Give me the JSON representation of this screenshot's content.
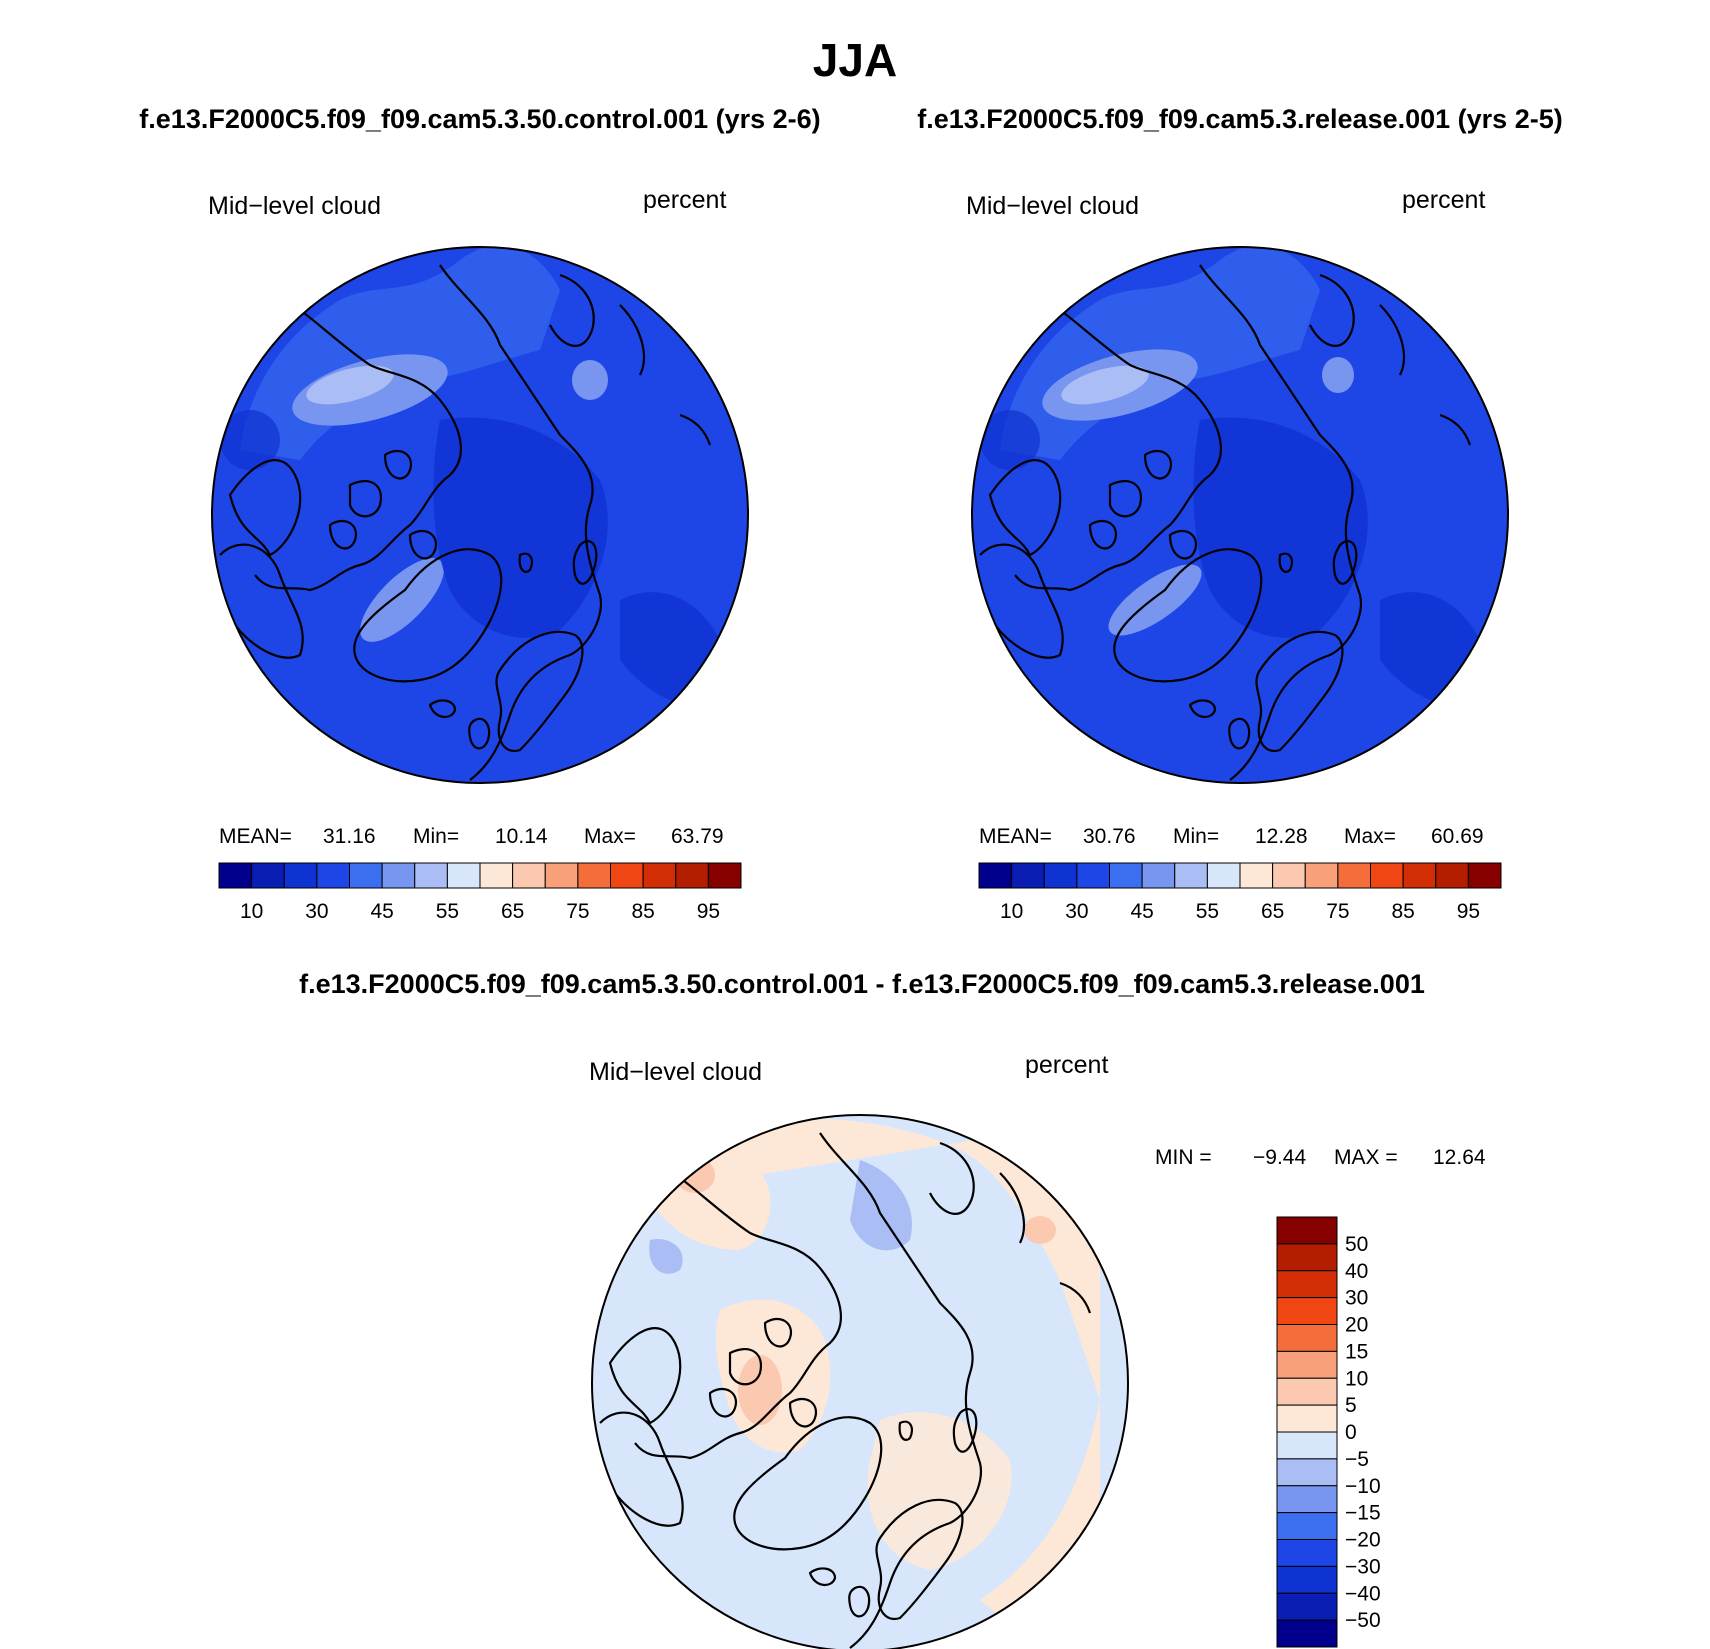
{
  "figure": {
    "title": "JJA",
    "case1": "f.e13.F2000C5.f09_f09.cam5.3.50.control.001 (yrs 2-6)",
    "case2": "f.e13.F2000C5.f09_f09.cam5.3.release.001 (yrs 2-5)",
    "diff_title": "f.e13.F2000C5.f09_f09.cam5.3.50.control.001 - f.e13.F2000C5.f09_f09.cam5.3.release.001"
  },
  "panels": [
    {
      "variable": "Mid−level cloud",
      "units": "percent",
      "mean_label": "MEAN=",
      "mean": "31.16",
      "min_label": "Min=",
      "min": "10.14",
      "max_label": "Max=",
      "max": "63.79"
    },
    {
      "variable": "Mid−level cloud",
      "units": "percent",
      "mean_label": "MEAN=",
      "mean": "30.76",
      "min_label": "Min=",
      "min": "12.28",
      "max_label": "Max=",
      "max": "60.69"
    }
  ],
  "diff_panel": {
    "variable": "Mid−level cloud",
    "units": "percent",
    "min_label": "MIN =",
    "min": "−9.44",
    "max_label": "MAX =",
    "max": "12.64"
  },
  "colorbar_abs": {
    "colors": [
      "#00008c",
      "#0a1eb4",
      "#0f32d2",
      "#1e46e6",
      "#3c6ef0",
      "#7896f0",
      "#aabef5",
      "#d7e6fa",
      "#fde8d8",
      "#fbc8b0",
      "#f7a07a",
      "#f46e3c",
      "#f04614",
      "#d22d05",
      "#b41e00",
      "#870000"
    ],
    "labels": [
      "10",
      "30",
      "45",
      "55",
      "65",
      "75",
      "85",
      "95"
    ]
  },
  "colorbar_diff": {
    "colors": [
      "#870000",
      "#b41e00",
      "#d22d05",
      "#f04614",
      "#f46e3c",
      "#f7a07a",
      "#fbc8b0",
      "#fde8d8",
      "#d7e6fa",
      "#aabef5",
      "#7896f0",
      "#3c6ef0",
      "#1e46e6",
      "#0f32d2",
      "#0a1eb4",
      "#00008c"
    ],
    "labels": [
      "50",
      "40",
      "30",
      "20",
      "15",
      "10",
      "5",
      "0",
      "−5",
      "−10",
      "−15",
      "−20",
      "−30",
      "−40",
      "−50"
    ]
  },
  "chart_data": [
    {
      "type": "heatmap",
      "projection": "north polar stereographic",
      "title": "Mid−level cloud",
      "units": "percent",
      "mean": 31.16,
      "min": 10.14,
      "max": 63.79,
      "contour_levels": [
        10,
        15,
        20,
        25,
        30,
        35,
        40,
        45,
        50,
        55,
        60,
        65,
        70,
        75,
        80,
        85,
        90,
        95
      ],
      "colorbar_ticks": [
        10,
        30,
        45,
        55,
        65,
        75,
        85,
        95
      ]
    },
    {
      "type": "heatmap",
      "projection": "north polar stereographic",
      "title": "Mid−level cloud",
      "units": "percent",
      "mean": 30.76,
      "min": 12.28,
      "max": 60.69,
      "contour_levels": [
        10,
        15,
        20,
        25,
        30,
        35,
        40,
        45,
        50,
        55,
        60,
        65,
        70,
        75,
        80,
        85,
        90,
        95
      ],
      "colorbar_ticks": [
        10,
        30,
        45,
        55,
        65,
        75,
        85,
        95
      ]
    },
    {
      "type": "heatmap",
      "projection": "north polar stereographic",
      "title": "Mid−level cloud",
      "units": "percent",
      "min": -9.44,
      "max": 12.64,
      "colorbar_ticks": [
        50,
        40,
        30,
        20,
        15,
        10,
        5,
        0,
        -5,
        -10,
        -15,
        -20,
        -30,
        -40,
        -50
      ]
    }
  ]
}
